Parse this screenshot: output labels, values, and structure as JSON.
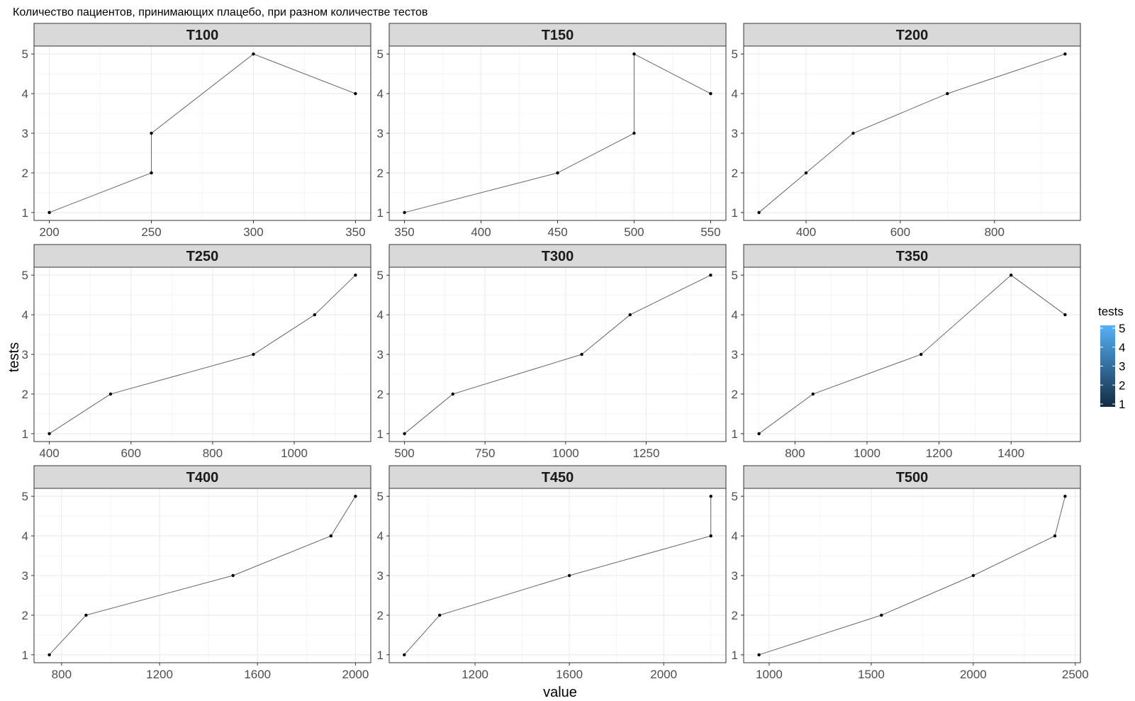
{
  "chart_data": {
    "type": "line",
    "title": "Количество пациентов, принимающих плацебо, при разном количестве тестов",
    "xlabel": "value",
    "ylabel": "tests",
    "grid": true,
    "y_ticks": [
      "1",
      "2",
      "3",
      "4",
      "5"
    ],
    "legend": {
      "title": "tests",
      "placement": "right",
      "type": "colorbar",
      "labels": [
        "5",
        "4",
        "3",
        "2",
        "1"
      ],
      "low_color": "#132B43",
      "high_color": "#56B1F7"
    },
    "line_color": "#666666",
    "point_color": "#000000",
    "panels": [
      {
        "name": "T100",
        "xlim": [
          192.5,
          357.5
        ],
        "x_ticks": [
          200,
          250,
          300,
          350
        ],
        "x_tick_labels": [
          "200",
          "250",
          "300",
          "350"
        ],
        "points": [
          {
            "x": 200,
            "y": 1
          },
          {
            "x": 250,
            "y": 2
          },
          {
            "x": 250,
            "y": 3
          },
          {
            "x": 300,
            "y": 5
          },
          {
            "x": 350,
            "y": 4
          }
        ]
      },
      {
        "name": "T150",
        "xlim": [
          340,
          560
        ],
        "x_ticks": [
          350,
          400,
          450,
          500,
          550
        ],
        "x_tick_labels": [
          "350",
          "400",
          "450",
          "500",
          "550"
        ],
        "points": [
          {
            "x": 350,
            "y": 1
          },
          {
            "x": 450,
            "y": 2
          },
          {
            "x": 500,
            "y": 3
          },
          {
            "x": 500,
            "y": 5
          },
          {
            "x": 550,
            "y": 4
          }
        ]
      },
      {
        "name": "T200",
        "xlim": [
          267.5,
          982.5
        ],
        "x_ticks": [
          400,
          600,
          800
        ],
        "x_tick_labels": [
          "400",
          "600",
          "800"
        ],
        "points": [
          {
            "x": 300,
            "y": 1
          },
          {
            "x": 400,
            "y": 2
          },
          {
            "x": 500,
            "y": 3
          },
          {
            "x": 700,
            "y": 4
          },
          {
            "x": 950,
            "y": 5
          }
        ]
      },
      {
        "name": "T250",
        "xlim": [
          362.5,
          1187.5
        ],
        "x_ticks": [
          400,
          600,
          800,
          1000
        ],
        "x_tick_labels": [
          "400",
          "600",
          "800",
          "1000"
        ],
        "points": [
          {
            "x": 400,
            "y": 1
          },
          {
            "x": 550,
            "y": 2
          },
          {
            "x": 900,
            "y": 3
          },
          {
            "x": 1050,
            "y": 4
          },
          {
            "x": 1150,
            "y": 5
          }
        ]
      },
      {
        "name": "T300",
        "xlim": [
          452.5,
          1497.5
        ],
        "x_ticks": [
          500,
          750,
          1000,
          1250
        ],
        "x_tick_labels": [
          "500",
          "750",
          "1000",
          "1250"
        ],
        "points": [
          {
            "x": 500,
            "y": 1
          },
          {
            "x": 650,
            "y": 2
          },
          {
            "x": 1050,
            "y": 3
          },
          {
            "x": 1200,
            "y": 4
          },
          {
            "x": 1450,
            "y": 5
          }
        ]
      },
      {
        "name": "T350",
        "xlim": [
          657.5,
          1592.5
        ],
        "x_ticks": [
          800,
          1000,
          1200,
          1400
        ],
        "x_tick_labels": [
          "800",
          "1000",
          "1200",
          "1400"
        ],
        "points": [
          {
            "x": 700,
            "y": 1
          },
          {
            "x": 850,
            "y": 2
          },
          {
            "x": 1150,
            "y": 3
          },
          {
            "x": 1400,
            "y": 5
          },
          {
            "x": 1550,
            "y": 4
          }
        ]
      },
      {
        "name": "T400",
        "xlim": [
          687.5,
          2062.5
        ],
        "x_ticks": [
          800,
          1200,
          1600,
          2000
        ],
        "x_tick_labels": [
          "800",
          "1200",
          "1600",
          "2000"
        ],
        "points": [
          {
            "x": 750,
            "y": 1
          },
          {
            "x": 900,
            "y": 2
          },
          {
            "x": 1500,
            "y": 3
          },
          {
            "x": 1900,
            "y": 4
          },
          {
            "x": 2000,
            "y": 5
          }
        ]
      },
      {
        "name": "T450",
        "xlim": [
          836,
          2264
        ],
        "x_ticks": [
          1200,
          1600,
          2000
        ],
        "x_tick_labels": [
          "1200",
          "1600",
          "2000"
        ],
        "points": [
          {
            "x": 900,
            "y": 1
          },
          {
            "x": 1050,
            "y": 2
          },
          {
            "x": 1600,
            "y": 3
          },
          {
            "x": 2200,
            "y": 4
          },
          {
            "x": 2200,
            "y": 5
          }
        ]
      },
      {
        "name": "T500",
        "xlim": [
          875,
          2525
        ],
        "x_ticks": [
          1000,
          1500,
          2000,
          2500
        ],
        "x_tick_labels": [
          "1000",
          "1500",
          "2000",
          "2500"
        ],
        "points": [
          {
            "x": 950,
            "y": 1
          },
          {
            "x": 1550,
            "y": 2
          },
          {
            "x": 2000,
            "y": 3
          },
          {
            "x": 2400,
            "y": 4
          },
          {
            "x": 2450,
            "y": 5
          }
        ]
      }
    ]
  }
}
